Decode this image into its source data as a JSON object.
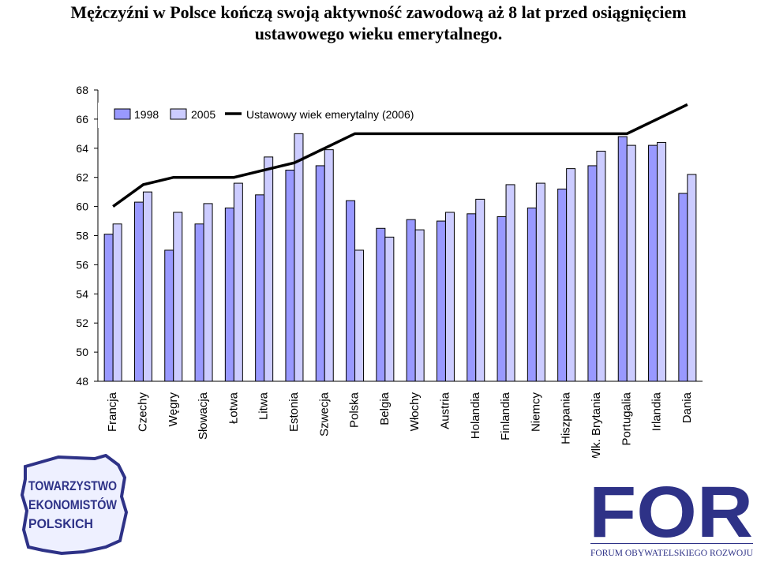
{
  "title_line1": "Mężczyźni w Polsce kończą swoją aktywność zawodową aż 8 lat przed osiągnięciem",
  "title_line2": "ustawowego wieku emerytalnego.",
  "chart_data": {
    "type": "bar",
    "categories": [
      "Francja",
      "Czechy",
      "Węgry",
      "Słowacja",
      "Łotwa",
      "Litwa",
      "Estonia",
      "Szwecja",
      "Polska",
      "Belgia",
      "Włochy",
      "Austria",
      "Holandia",
      "Finlandia",
      "Niemcy",
      "Hiszpania",
      "Wlk. Brytania",
      "Portugalia",
      "Irlandia",
      "Dania"
    ],
    "series": [
      {
        "name": "1998",
        "type": "bar",
        "color": "#9999ff",
        "values": [
          58.1,
          60.3,
          57.0,
          58.8,
          59.9,
          60.8,
          62.5,
          62.8,
          60.4,
          58.5,
          59.1,
          59.0,
          59.5,
          59.3,
          59.9,
          61.2,
          62.8,
          64.8,
          64.2,
          60.9
        ]
      },
      {
        "name": "2005",
        "type": "bar",
        "color": "#ccccff",
        "values": [
          58.8,
          61.0,
          59.6,
          60.2,
          61.6,
          63.4,
          65.0,
          63.9,
          57.0,
          57.9,
          58.4,
          59.6,
          60.5,
          61.5,
          61.6,
          62.6,
          63.8,
          64.2,
          64.4,
          62.2
        ]
      },
      {
        "name": "Ustawowy wiek emerytalny (2006)",
        "type": "line",
        "color": "#000000",
        "values": [
          60,
          61.5,
          62,
          62,
          62,
          62.5,
          63,
          64,
          65,
          65,
          65,
          65,
          65,
          65,
          65,
          65,
          65,
          65,
          66,
          67
        ]
      }
    ],
    "ylim": [
      48,
      68
    ],
    "yticks": [
      48,
      50,
      52,
      54,
      56,
      58,
      60,
      62,
      64,
      66,
      68
    ],
    "legend_position": "top-left",
    "grid": false
  },
  "logos": {
    "tep_text": [
      "TOWARZYSTWO",
      "EKONOMISTÓW",
      "POLSKICH"
    ],
    "for_text": "FOR",
    "for_subtitle": "FORUM OBYWATELSKIEGO ROZWOJU"
  },
  "colors": {
    "bar_1998": "#9999ff",
    "bar_2005": "#ccccff",
    "line": "#000000",
    "logo_blue": "#2e3287"
  }
}
